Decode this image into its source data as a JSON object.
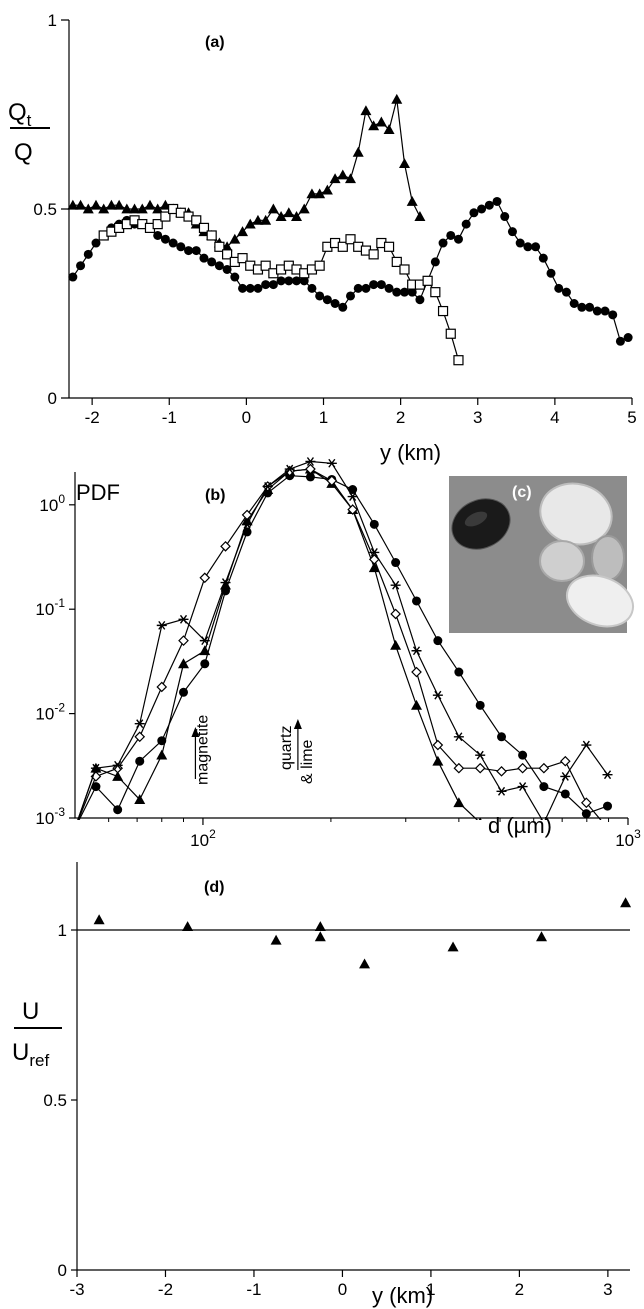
{
  "chart_data": [
    {
      "panel": "(a)",
      "type": "line",
      "ylabel_top": "Q",
      "ylabel_top_sub": "t",
      "ylabel_bottom": "Q",
      "xlabel": "y (km)",
      "xlim": [
        -2.3,
        5.0
      ],
      "ylim": [
        0,
        1
      ],
      "xticks": [
        "-2",
        "-1",
        "0",
        "1",
        "2",
        "3",
        "4",
        "5"
      ],
      "xtick_values": [
        -2,
        -1,
        0,
        1,
        2,
        3,
        4,
        5
      ],
      "yticks": [
        "0",
        "0.5",
        "1"
      ],
      "ytick_values": [
        0,
        0.5,
        1
      ],
      "series": [
        {
          "marker": "triangle-filled",
          "x": [
            -2.25,
            -2.15,
            -2.05,
            -1.95,
            -1.85,
            -1.75,
            -1.65,
            -1.55,
            -1.45,
            -1.35,
            -1.25,
            -1.15,
            -1.05,
            -0.95,
            -0.85,
            -0.75,
            -0.65,
            -0.55,
            -0.45,
            -0.35,
            -0.25,
            -0.15,
            -0.05,
            0.05,
            0.15,
            0.25,
            0.35,
            0.45,
            0.55,
            0.65,
            0.75,
            0.85,
            0.95,
            1.05,
            1.15,
            1.25,
            1.35,
            1.45,
            1.55,
            1.65,
            1.75,
            1.85,
            1.95,
            2.05,
            2.15,
            2.25
          ],
          "y": [
            0.51,
            0.51,
            0.5,
            0.51,
            0.5,
            0.51,
            0.51,
            0.5,
            0.5,
            0.5,
            0.51,
            0.5,
            0.51,
            0.5,
            0.49,
            0.49,
            0.46,
            0.44,
            0.43,
            0.41,
            0.4,
            0.42,
            0.44,
            0.46,
            0.47,
            0.47,
            0.5,
            0.48,
            0.49,
            0.48,
            0.5,
            0.54,
            0.54,
            0.55,
            0.58,
            0.59,
            0.58,
            0.65,
            0.76,
            0.72,
            0.73,
            0.71,
            0.79,
            0.62,
            0.52,
            0.48
          ]
        },
        {
          "marker": "circle-filled",
          "x": [
            -2.25,
            -2.15,
            -2.05,
            -1.95,
            -1.85,
            -1.75,
            -1.65,
            -1.55,
            -1.45,
            -1.35,
            -1.25,
            -1.15,
            -1.05,
            -0.95,
            -0.85,
            -0.75,
            -0.65,
            -0.55,
            -0.45,
            -0.35,
            -0.25,
            -0.15,
            -0.05,
            0.05,
            0.15,
            0.25,
            0.35,
            0.45,
            0.55,
            0.65,
            0.75,
            0.85,
            0.95,
            1.05,
            1.15,
            1.25,
            1.35,
            1.45,
            1.55,
            1.65,
            1.75,
            1.85,
            1.95,
            2.05,
            2.15,
            2.25,
            2.35,
            2.45,
            2.55,
            2.65,
            2.75,
            2.85,
            2.95,
            3.05,
            3.15,
            3.25,
            3.35,
            3.45,
            3.55,
            3.65,
            3.75,
            3.85,
            3.95,
            4.05,
            4.15,
            4.25,
            4.35,
            4.45,
            4.55,
            4.65,
            4.75,
            4.85,
            4.95
          ],
          "y": [
            0.32,
            0.35,
            0.38,
            0.41,
            0.43,
            0.45,
            0.46,
            0.47,
            0.46,
            0.46,
            0.45,
            0.43,
            0.42,
            0.41,
            0.4,
            0.39,
            0.39,
            0.37,
            0.36,
            0.35,
            0.34,
            0.32,
            0.29,
            0.29,
            0.29,
            0.3,
            0.3,
            0.31,
            0.31,
            0.31,
            0.31,
            0.29,
            0.27,
            0.26,
            0.25,
            0.24,
            0.27,
            0.29,
            0.29,
            0.3,
            0.3,
            0.29,
            0.28,
            0.28,
            0.28,
            0.26,
            0.31,
            0.36,
            0.41,
            0.43,
            0.42,
            0.46,
            0.49,
            0.5,
            0.51,
            0.52,
            0.48,
            0.44,
            0.41,
            0.4,
            0.4,
            0.37,
            0.33,
            0.29,
            0.28,
            0.25,
            0.24,
            0.24,
            0.23,
            0.23,
            0.22,
            0.15,
            0.16
          ]
        },
        {
          "marker": "square-open",
          "x": [
            -1.85,
            -1.75,
            -1.65,
            -1.55,
            -1.45,
            -1.35,
            -1.25,
            -1.15,
            -1.05,
            -0.95,
            -0.85,
            -0.75,
            -0.65,
            -0.55,
            -0.45,
            -0.35,
            -0.25,
            -0.15,
            -0.05,
            0.05,
            0.15,
            0.25,
            0.35,
            0.45,
            0.55,
            0.65,
            0.75,
            0.85,
            0.95,
            1.05,
            1.15,
            1.25,
            1.35,
            1.45,
            1.55,
            1.65,
            1.75,
            1.85,
            1.95,
            2.05,
            2.15,
            2.25,
            2.35,
            2.45,
            2.55,
            2.65,
            2.75
          ],
          "y": [
            0.43,
            0.44,
            0.45,
            0.46,
            0.47,
            0.46,
            0.45,
            0.46,
            0.48,
            0.5,
            0.49,
            0.48,
            0.47,
            0.45,
            0.43,
            0.4,
            0.38,
            0.36,
            0.37,
            0.35,
            0.34,
            0.35,
            0.33,
            0.34,
            0.35,
            0.34,
            0.33,
            0.34,
            0.35,
            0.4,
            0.41,
            0.4,
            0.42,
            0.4,
            0.39,
            0.38,
            0.41,
            0.4,
            0.36,
            0.34,
            0.3,
            0.3,
            0.31,
            0.28,
            0.23,
            0.17,
            0.1
          ]
        }
      ]
    },
    {
      "panel": "(b)",
      "type": "line",
      "ylabel": "PDF",
      "xlabel": "d (µm)",
      "xscale": "log",
      "yscale": "log",
      "xlim": [
        50,
        1000
      ],
      "ylim": [
        0.001,
        3
      ],
      "xticks": [
        "10",
        "10"
      ],
      "xtick_sup": [
        "2",
        "3"
      ],
      "xtick_values": [
        100,
        1000
      ],
      "yticks": [
        "10",
        "10",
        "10",
        "10"
      ],
      "ytick_sup": [
        "0",
        "-1",
        "-2",
        "-3"
      ],
      "ytick_values": [
        1,
        0.1,
        0.01,
        0.001
      ],
      "annotations": [
        "magnetite",
        "quartz",
        "& lime"
      ],
      "annotation_x": [
        96,
        170
      ],
      "series": [
        {
          "marker": "circle-filled",
          "x": [
            50,
            56,
            63,
            71,
            80,
            90,
            101,
            113,
            127,
            142,
            160,
            179,
            201,
            225,
            253,
            284,
            318,
            357,
            400,
            449,
            504,
            565,
            634,
            712,
            798,
            895
          ],
          "y": [
            0.0008,
            0.002,
            0.0012,
            0.0035,
            0.0055,
            0.016,
            0.03,
            0.15,
            0.55,
            1.3,
            1.9,
            1.85,
            1.75,
            1.4,
            0.65,
            0.28,
            0.12,
            0.05,
            0.025,
            0.012,
            0.006,
            0.004,
            0.002,
            0.0017,
            0.0011,
            0.0013
          ]
        },
        {
          "marker": "triangle-filled",
          "x": [
            50,
            56,
            63,
            71,
            80,
            90,
            101,
            113,
            127,
            142,
            160,
            179,
            201,
            225,
            253,
            284,
            318,
            357,
            400,
            449,
            504
          ],
          "y": [
            0.0008,
            0.003,
            0.0025,
            0.0015,
            0.004,
            0.03,
            0.04,
            0.17,
            0.7,
            1.4,
            2.1,
            2.2,
            1.6,
            0.9,
            0.25,
            0.045,
            0.012,
            0.0035,
            0.0014,
            0.0009,
            0.0008
          ]
        },
        {
          "marker": "diamond-open",
          "x": [
            50,
            56,
            63,
            71,
            80,
            90,
            101,
            113,
            127,
            142,
            160,
            179,
            201,
            225,
            253,
            284,
            318,
            357,
            400,
            449,
            504,
            565,
            634,
            712,
            798,
            895
          ],
          "y": [
            0.0008,
            0.0025,
            0.003,
            0.006,
            0.018,
            0.05,
            0.2,
            0.4,
            0.8,
            1.5,
            2.1,
            2.2,
            1.7,
            0.9,
            0.3,
            0.09,
            0.025,
            0.005,
            0.003,
            0.003,
            0.0028,
            0.003,
            0.003,
            0.0035,
            0.0014,
            0.0008
          ]
        },
        {
          "marker": "asterisk",
          "x": [
            50,
            56,
            63,
            71,
            80,
            90,
            101,
            113,
            127,
            142,
            160,
            179,
            201,
            225,
            253,
            284,
            318,
            357,
            400,
            449,
            504,
            565,
            634,
            712,
            798,
            895
          ],
          "y": [
            0.0008,
            0.003,
            0.0032,
            0.008,
            0.07,
            0.08,
            0.05,
            0.18,
            0.65,
            1.5,
            2.2,
            2.6,
            2.5,
            1.2,
            0.35,
            0.17,
            0.04,
            0.015,
            0.006,
            0.004,
            0.0018,
            0.002,
            0.0009,
            0.0025,
            0.005,
            0.0026
          ]
        }
      ]
    },
    {
      "panel": "(d)",
      "type": "scatter",
      "ylabel_top": "U",
      "ylabel_bottom": "U",
      "ylabel_bottom_sub": "ref",
      "xlabel": "y (km)",
      "xlim": [
        -3,
        3.25
      ],
      "ylim": [
        0,
        1.2
      ],
      "xticks": [
        "-3",
        "-2",
        "-1",
        "0",
        "1",
        "2",
        "3"
      ],
      "xtick_values": [
        -3,
        -2,
        -1,
        0,
        1,
        2,
        3
      ],
      "yticks": [
        "0",
        "0.5",
        "1"
      ],
      "ytick_values": [
        0,
        0.5,
        1
      ],
      "reference_line": 1.0,
      "series": [
        {
          "marker": "triangle-filled",
          "x": [
            -2.75,
            -1.75,
            -0.75,
            -0.25,
            -0.25,
            0.25,
            1.25,
            2.25,
            3.2
          ],
          "y": [
            1.03,
            1.01,
            0.97,
            1.01,
            0.98,
            0.9,
            0.95,
            0.98,
            1.08
          ]
        }
      ]
    }
  ],
  "inset": {
    "label": "(c)"
  }
}
